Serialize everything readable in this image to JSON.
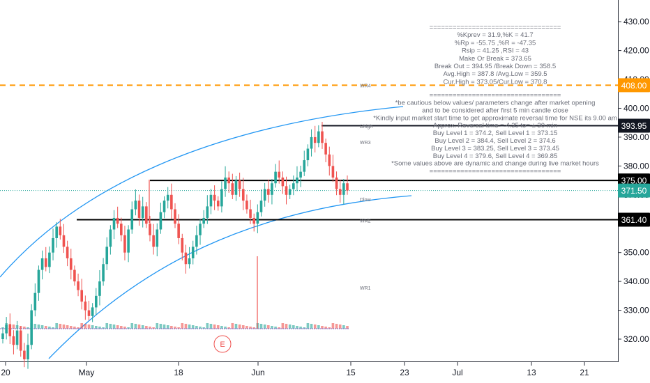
{
  "chart_data": {
    "type": "candlestick",
    "price_axis": {
      "ticks": [
        320,
        330,
        340,
        350,
        360,
        370,
        380,
        390,
        400,
        410,
        420,
        430
      ],
      "tick_labels": [
        "320.00",
        "330.00",
        "340.00",
        "350.00",
        "360.00",
        "370.00",
        "380.00",
        "390.00",
        "400.00",
        "410.00",
        "420.00",
        "430.00"
      ],
      "range": [
        312,
        436
      ]
    },
    "time_axis": {
      "labels": [
        "20",
        "May",
        "18",
        "Jun",
        "15",
        "23",
        "Jul",
        "13",
        "21"
      ]
    },
    "price_tags": [
      {
        "label": "408.00",
        "value": 408.0,
        "style": "orange"
      },
      {
        "label": "393.95",
        "value": 393.95,
        "style": "dark"
      },
      {
        "label": "375.00",
        "value": 375.0,
        "style": "black"
      },
      {
        "label": "371.50",
        "value": 371.5,
        "style": "teal"
      },
      {
        "label": "361.40",
        "value": 361.4,
        "style": "black"
      }
    ],
    "levels": [
      {
        "name": "WR4",
        "value": 408.0,
        "style": "dashed"
      },
      {
        "name": "Dhigh",
        "value": 393.95,
        "style": "solid"
      },
      {
        "name": "",
        "value": 375.0,
        "style": "solid"
      },
      {
        "name": "Dlow",
        "value": 371.5,
        "style": "dotted"
      },
      {
        "name": "",
        "value": 361.4,
        "style": "solid"
      }
    ],
    "markers": [
      {
        "name": "WR4",
        "value": 408.0
      },
      {
        "name": "Dhigh",
        "value": 393.8
      },
      {
        "name": "WR3",
        "value": 388.3
      },
      {
        "name": "Dlow",
        "value": 368.5
      },
      {
        "name": "WR2",
        "value": 361.2
      },
      {
        "name": "WR1",
        "value": 337.8
      }
    ],
    "event_marker": "E",
    "annotation_lines": [
      "==================================",
      "%Kprev = 31.9,%K = 41.7",
      "%Rp = -55.75 ,%R = -47.35",
      "Rsip = 41.25 ,RSI = 43",
      "Make Or Break = 373.65",
      "Break Out = 394.95   /Break Down = 358.5",
      "Avg.High = 387.8   /Avg.Low = 359.5",
      "Cur.High = 373.05/Cur.Low = 370.8",
      "",
      "==================================",
      "*be cautious below values/ parameters change after market opening",
      "and to be considered after first 5 min candle close",
      "*Kindly input market start time to get approximate reversal time for NSE its 9.00 am",
      "Approx. Reversal time =     4.35  to= ± 30 min",
      "Buy Level 1 = 374.2, Sell Level 1 = 373.15",
      "Buy Level 2 = 384.4, Sell Level 2 = 374.6",
      "Buy Level 3 = 383.25, Sell Level 3 = 373.45",
      "Buy Level 4 = 379.6, Sell Level 4 = 369.85",
      "*Some values above are dynamic and change during live market hours",
      "=================================="
    ],
    "closes": [
      322,
      325,
      321,
      318,
      323,
      316,
      313,
      318,
      330,
      336,
      344,
      348,
      345,
      350,
      355,
      359,
      356,
      352,
      348,
      344,
      340,
      337,
      333,
      330,
      328,
      331,
      335,
      340,
      346,
      352,
      358,
      362,
      360,
      356,
      350,
      358,
      365,
      368,
      362,
      366,
      360,
      356,
      352,
      358,
      364,
      368,
      370,
      365,
      360,
      355,
      350,
      346,
      348,
      352,
      356,
      360,
      362,
      366,
      370,
      368,
      366,
      372,
      376,
      374,
      370,
      375,
      372,
      368,
      365,
      362,
      360,
      364,
      368,
      372,
      370,
      374,
      378,
      376,
      373,
      370,
      372,
      374,
      376,
      378,
      382,
      386,
      390,
      388,
      392,
      388,
      384,
      380,
      376,
      372,
      370,
      374,
      371.5
    ],
    "colors": {
      "up": "#26a69a",
      "down": "#ef5350",
      "channel": "#2196f3",
      "orange": "#ff9800",
      "teal": "#26a69a",
      "dark": "#131722"
    }
  }
}
